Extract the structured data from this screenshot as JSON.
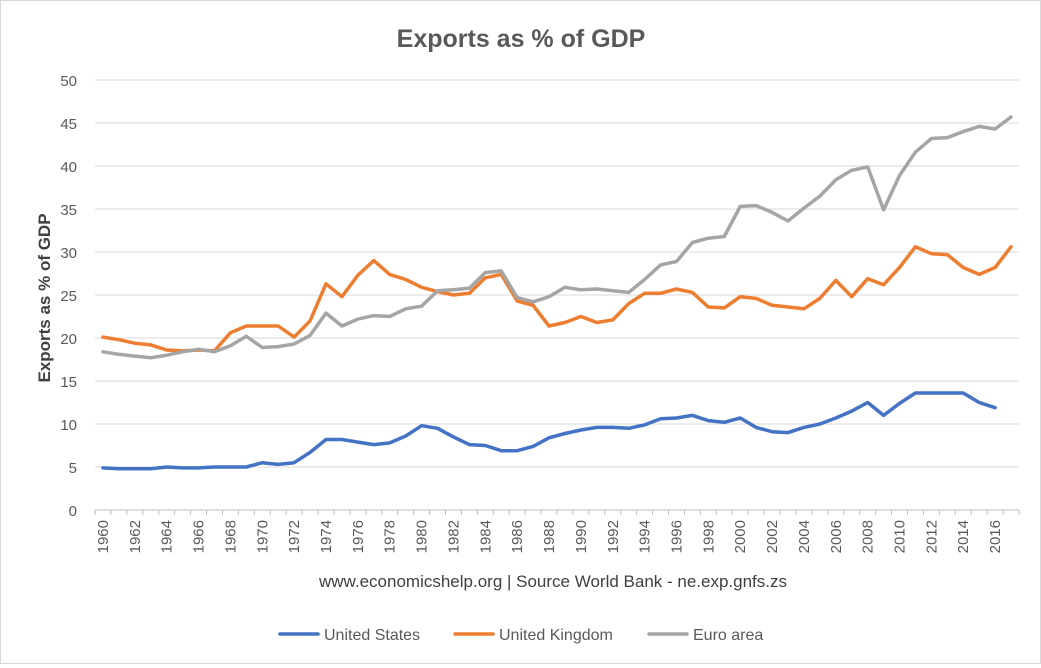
{
  "chart_data": {
    "type": "line",
    "title": "Exports as % of GDP",
    "ylabel": "Exports as % of GDP",
    "xlabel": "www.economicshelp.org | Source World Bank - ne.exp.gnfs.zs",
    "ylim": [
      0,
      50
    ],
    "yticks": [
      0,
      5,
      10,
      15,
      20,
      25,
      30,
      35,
      40,
      45,
      50
    ],
    "x": [
      1960,
      1961,
      1962,
      1963,
      1964,
      1965,
      1966,
      1967,
      1968,
      1969,
      1970,
      1971,
      1972,
      1973,
      1974,
      1975,
      1976,
      1977,
      1978,
      1979,
      1980,
      1981,
      1982,
      1983,
      1984,
      1985,
      1986,
      1987,
      1988,
      1989,
      1990,
      1991,
      1992,
      1993,
      1994,
      1995,
      1996,
      1997,
      1998,
      1999,
      2000,
      2001,
      2002,
      2003,
      2004,
      2005,
      2006,
      2007,
      2008,
      2009,
      2010,
      2011,
      2012,
      2013,
      2014,
      2015,
      2016,
      2017
    ],
    "xtick_labels": [
      "1960",
      "1962",
      "1964",
      "1966",
      "1968",
      "1970",
      "1972",
      "1974",
      "1976",
      "1978",
      "1980",
      "1982",
      "1984",
      "1986",
      "1988",
      "1990",
      "1992",
      "1994",
      "1996",
      "1998",
      "2000",
      "2002",
      "2004",
      "2006",
      "2008",
      "2010",
      "2012",
      "2014",
      "2016"
    ],
    "grid": true,
    "legend_position": "bottom",
    "series": [
      {
        "name": "United States",
        "color": "#4472C4",
        "values": [
          4.9,
          4.8,
          4.8,
          4.8,
          5.0,
          4.9,
          4.9,
          5.0,
          5.0,
          5.0,
          5.5,
          5.3,
          5.5,
          6.7,
          8.2,
          8.2,
          7.9,
          7.6,
          7.8,
          8.6,
          9.8,
          9.5,
          8.5,
          7.6,
          7.5,
          6.9,
          6.9,
          7.4,
          8.4,
          8.9,
          9.3,
          9.6,
          9.6,
          9.5,
          9.9,
          10.6,
          10.7,
          11.0,
          10.4,
          10.2,
          10.7,
          9.6,
          9.1,
          9.0,
          9.6,
          10.0,
          10.7,
          11.5,
          12.5,
          11.0,
          12.4,
          13.6,
          13.6,
          13.6,
          13.6,
          12.5,
          11.9,
          null
        ]
      },
      {
        "name": "United Kingdom",
        "color": "#ED7D31",
        "values": [
          20.1,
          19.8,
          19.4,
          19.2,
          18.6,
          18.5,
          18.6,
          18.5,
          20.6,
          21.4,
          21.4,
          21.4,
          20.1,
          22.0,
          26.3,
          24.8,
          27.3,
          29.0,
          27.4,
          26.8,
          25.9,
          25.4,
          25.0,
          25.2,
          27.0,
          27.4,
          24.3,
          23.8,
          21.4,
          21.8,
          22.5,
          21.8,
          22.1,
          24.0,
          25.2,
          25.2,
          25.7,
          25.3,
          23.6,
          23.5,
          24.8,
          24.6,
          23.8,
          23.6,
          23.4,
          24.6,
          26.7,
          24.8,
          26.9,
          26.2,
          28.2,
          30.6,
          29.8,
          29.7,
          28.2,
          27.4,
          28.2,
          30.6
        ]
      },
      {
        "name": "Euro area",
        "color": "#A5A5A5",
        "values": [
          18.4,
          18.1,
          17.9,
          17.7,
          18.0,
          18.4,
          18.7,
          18.4,
          19.1,
          20.2,
          18.9,
          19.0,
          19.3,
          20.3,
          22.9,
          21.4,
          22.2,
          22.6,
          22.5,
          23.4,
          23.7,
          25.5,
          25.6,
          25.8,
          27.6,
          27.8,
          24.7,
          24.2,
          24.8,
          25.9,
          25.6,
          25.7,
          25.5,
          25.3,
          26.8,
          28.5,
          28.9,
          31.1,
          31.6,
          31.8,
          35.3,
          35.4,
          34.6,
          33.6,
          35.1,
          36.5,
          38.4,
          39.5,
          39.9,
          34.9,
          38.9,
          41.6,
          43.2,
          43.3,
          44.0,
          44.6,
          44.3,
          45.7
        ]
      }
    ]
  }
}
